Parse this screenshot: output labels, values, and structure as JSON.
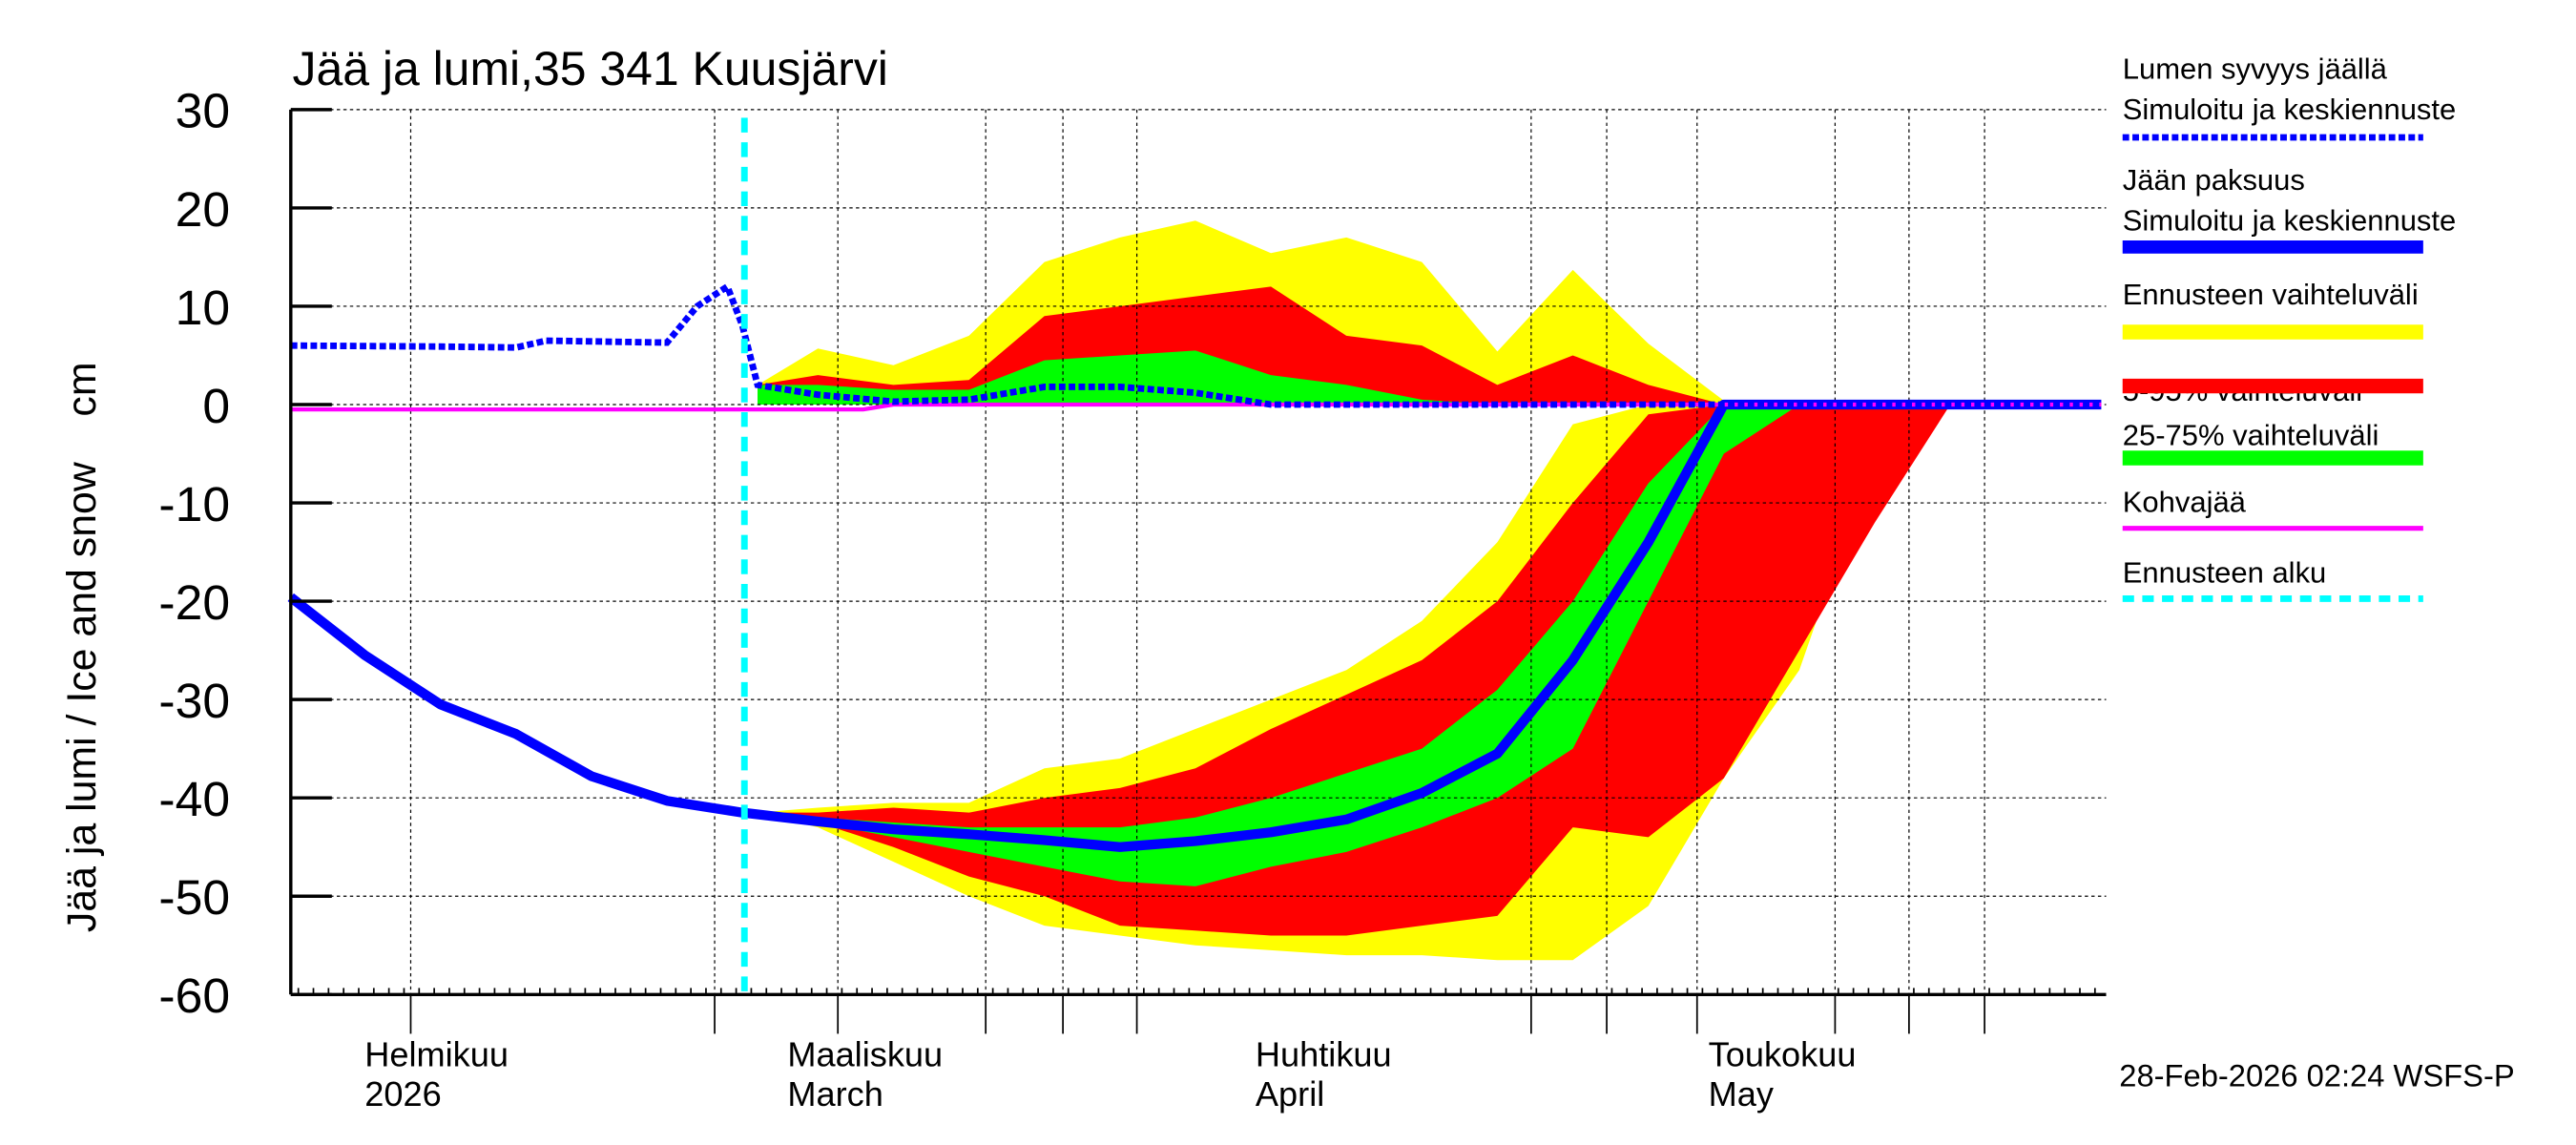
{
  "chart_data": {
    "type": "area",
    "title": "Jää ja lumi,35 341 Kuusjärvi",
    "ylabel": "Jää ja lumi / Ice and snow    cm",
    "xlabel": "",
    "ylim": [
      -60,
      30
    ],
    "yticks": [
      30,
      20,
      10,
      0,
      -10,
      -20,
      -30,
      -40,
      -50,
      -60
    ],
    "xlim": [
      "2026-01-28",
      "2026-05-28"
    ],
    "grid": true,
    "legend_position": "right",
    "month_labels": [
      {
        "date": "2026-02-01",
        "line1": "Helmikuu",
        "line2": "2026"
      },
      {
        "date": "2026-03-01",
        "line1": "Maaliskuu",
        "line2": "March"
      },
      {
        "date": "2026-04-01",
        "line1": "Huhtikuu",
        "line2": "April"
      },
      {
        "date": "2026-05-01",
        "line1": "Toukokuu",
        "line2": "May"
      }
    ],
    "forecast_start": "2026-02-28",
    "legend": [
      {
        "label1": "Lumen syvyys jäällä",
        "label2": "Simuloitu ja keskiennuste",
        "style": "dotted",
        "color": "#0000ff"
      },
      {
        "label1": "Jään paksuus",
        "label2": "Simuloitu ja keskiennuste",
        "style": "solid-thick",
        "color": "#0000ff"
      },
      {
        "label1": "Ennusteen vaihteluväli",
        "label2": "",
        "style": "band",
        "color": "#ffff00"
      },
      {
        "label1": "5-95% vaihteluväli",
        "label2": "",
        "style": "band",
        "color": "#ff0000"
      },
      {
        "label1": "25-75% vaihteluväli",
        "label2": "",
        "style": "band",
        "color": "#00ff00"
      },
      {
        "label1": "Kohvajää",
        "label2": "",
        "style": "solid",
        "color": "#ff00ff"
      },
      {
        "label1": "Ennusteen alku",
        "label2": "",
        "style": "dashed",
        "color": "#00ffff"
      }
    ],
    "series": {
      "snow": {
        "x": [
          "2026-01-28",
          "2026-02-07",
          "2026-02-12",
          "2026-02-14",
          "2026-02-22",
          "2026-02-24",
          "2026-02-26",
          "2026-02-27",
          "2026-02-28",
          "2026-03-04",
          "2026-03-09",
          "2026-03-14",
          "2026-03-19",
          "2026-03-24",
          "2026-03-29",
          "2026-04-03",
          "2026-05-28"
        ],
        "y": [
          6,
          5.9,
          5.8,
          6.5,
          6.3,
          10,
          12,
          8,
          2,
          1,
          0.3,
          0.5,
          1.8,
          1.8,
          1.2,
          0,
          0
        ]
      },
      "ice": {
        "x": [
          "2026-01-28",
          "2026-02-02",
          "2026-02-07",
          "2026-02-12",
          "2026-02-17",
          "2026-02-22",
          "2026-02-27",
          "2026-03-04",
          "2026-03-09",
          "2026-03-14",
          "2026-03-19",
          "2026-03-24",
          "2026-03-29",
          "2026-04-03",
          "2026-04-08",
          "2026-04-13",
          "2026-04-18",
          "2026-04-23",
          "2026-04-28",
          "2026-05-03",
          "2026-05-28"
        ],
        "y": [
          -19.6,
          -25.5,
          -30.5,
          -33.5,
          -37.8,
          -40.3,
          -41.5,
          -42.4,
          -43.2,
          -43.7,
          -44.3,
          -45.0,
          -44.4,
          -43.5,
          -42.2,
          -39.5,
          -35.5,
          -26.0,
          -14.0,
          0,
          0
        ]
      },
      "slush_ice": {
        "x": [
          "2026-01-28",
          "2026-03-07",
          "2026-03-09",
          "2026-05-28"
        ],
        "y": [
          -0.5,
          -0.5,
          0,
          0
        ]
      },
      "bands_x": [
        "2026-02-28",
        "2026-03-04",
        "2026-03-09",
        "2026-03-14",
        "2026-03-19",
        "2026-03-24",
        "2026-03-29",
        "2026-04-03",
        "2026-04-08",
        "2026-04-13",
        "2026-04-18",
        "2026-04-23",
        "2026-04-28",
        "2026-05-03",
        "2026-05-08",
        "2026-05-13",
        "2026-05-18"
      ],
      "snow_bands": {
        "range": {
          "lower": [
            0,
            0,
            0,
            0,
            0,
            0,
            0,
            0,
            0,
            0,
            0,
            0,
            0,
            0,
            0,
            0,
            0
          ],
          "upper": [
            2,
            5.7,
            4,
            7,
            14.5,
            17,
            18.7,
            15.4,
            17,
            14.5,
            5.4,
            13.7,
            6.2,
            0.4,
            0,
            0,
            0
          ]
        },
        "p5_95": {
          "lower": [
            0,
            0,
            0,
            0,
            0,
            0,
            0,
            0,
            0,
            0,
            0,
            0,
            0,
            0,
            0,
            0,
            0
          ],
          "upper": [
            2,
            3,
            2,
            2.5,
            9,
            10,
            11,
            12,
            7,
            6,
            2,
            5,
            2,
            0,
            0,
            0,
            0
          ]
        },
        "p25_75": {
          "lower": [
            0,
            0,
            0,
            0,
            0,
            0,
            0,
            0,
            0,
            0,
            0,
            0,
            0,
            0,
            0,
            0,
            0
          ],
          "upper": [
            2,
            2,
            1.5,
            1.5,
            4.5,
            5,
            5.5,
            3,
            2,
            0.5,
            0,
            0,
            0,
            0,
            0,
            0,
            0
          ]
        }
      },
      "ice_bands": {
        "range": {
          "lower": [
            -41.5,
            -43,
            -46.5,
            -50,
            -53,
            -54,
            -55,
            -55.5,
            -56,
            -56,
            -56.5,
            -56.5,
            -51,
            -38,
            -27,
            -5,
            0
          ],
          "upper": [
            -41.5,
            -41,
            -40.5,
            -40.5,
            -37,
            -36,
            -33,
            -30,
            -27,
            -22,
            -14,
            -2,
            0,
            0,
            0,
            0,
            0
          ]
        },
        "p5_95": {
          "lower": [
            -41.5,
            -42.5,
            -45,
            -48,
            -50,
            -53,
            -53.5,
            -54,
            -54,
            -53,
            -52,
            -43,
            -44,
            -38,
            -25,
            -12,
            0
          ],
          "upper": [
            -41.5,
            -41.5,
            -41,
            -41.5,
            -40,
            -39,
            -37,
            -33,
            -29.5,
            -26,
            -20,
            -10,
            -1,
            0,
            0,
            0,
            0
          ]
        },
        "p25_75": {
          "lower": [
            -41.5,
            -42.5,
            -44,
            -45.5,
            -47,
            -48.5,
            -49,
            -47,
            -45.5,
            -43,
            -40,
            -35,
            -20,
            -5,
            0,
            0,
            0
          ],
          "upper": [
            -41.5,
            -42,
            -42.5,
            -43,
            -43,
            -43,
            -42,
            -40,
            -37.5,
            -35,
            -29,
            -20,
            -8,
            0,
            0,
            0,
            0
          ]
        }
      }
    },
    "colors": {
      "range": "#ffff00",
      "p5_95": "#ff0000",
      "p25_75": "#00ff00",
      "snow": "#0000ff",
      "ice": "#0000ff",
      "slush_ice": "#ff00ff",
      "forecast_start": "#00ffff"
    }
  },
  "footer": {
    "timestamp": "28-Feb-2026 02:24 WSFS-P"
  }
}
